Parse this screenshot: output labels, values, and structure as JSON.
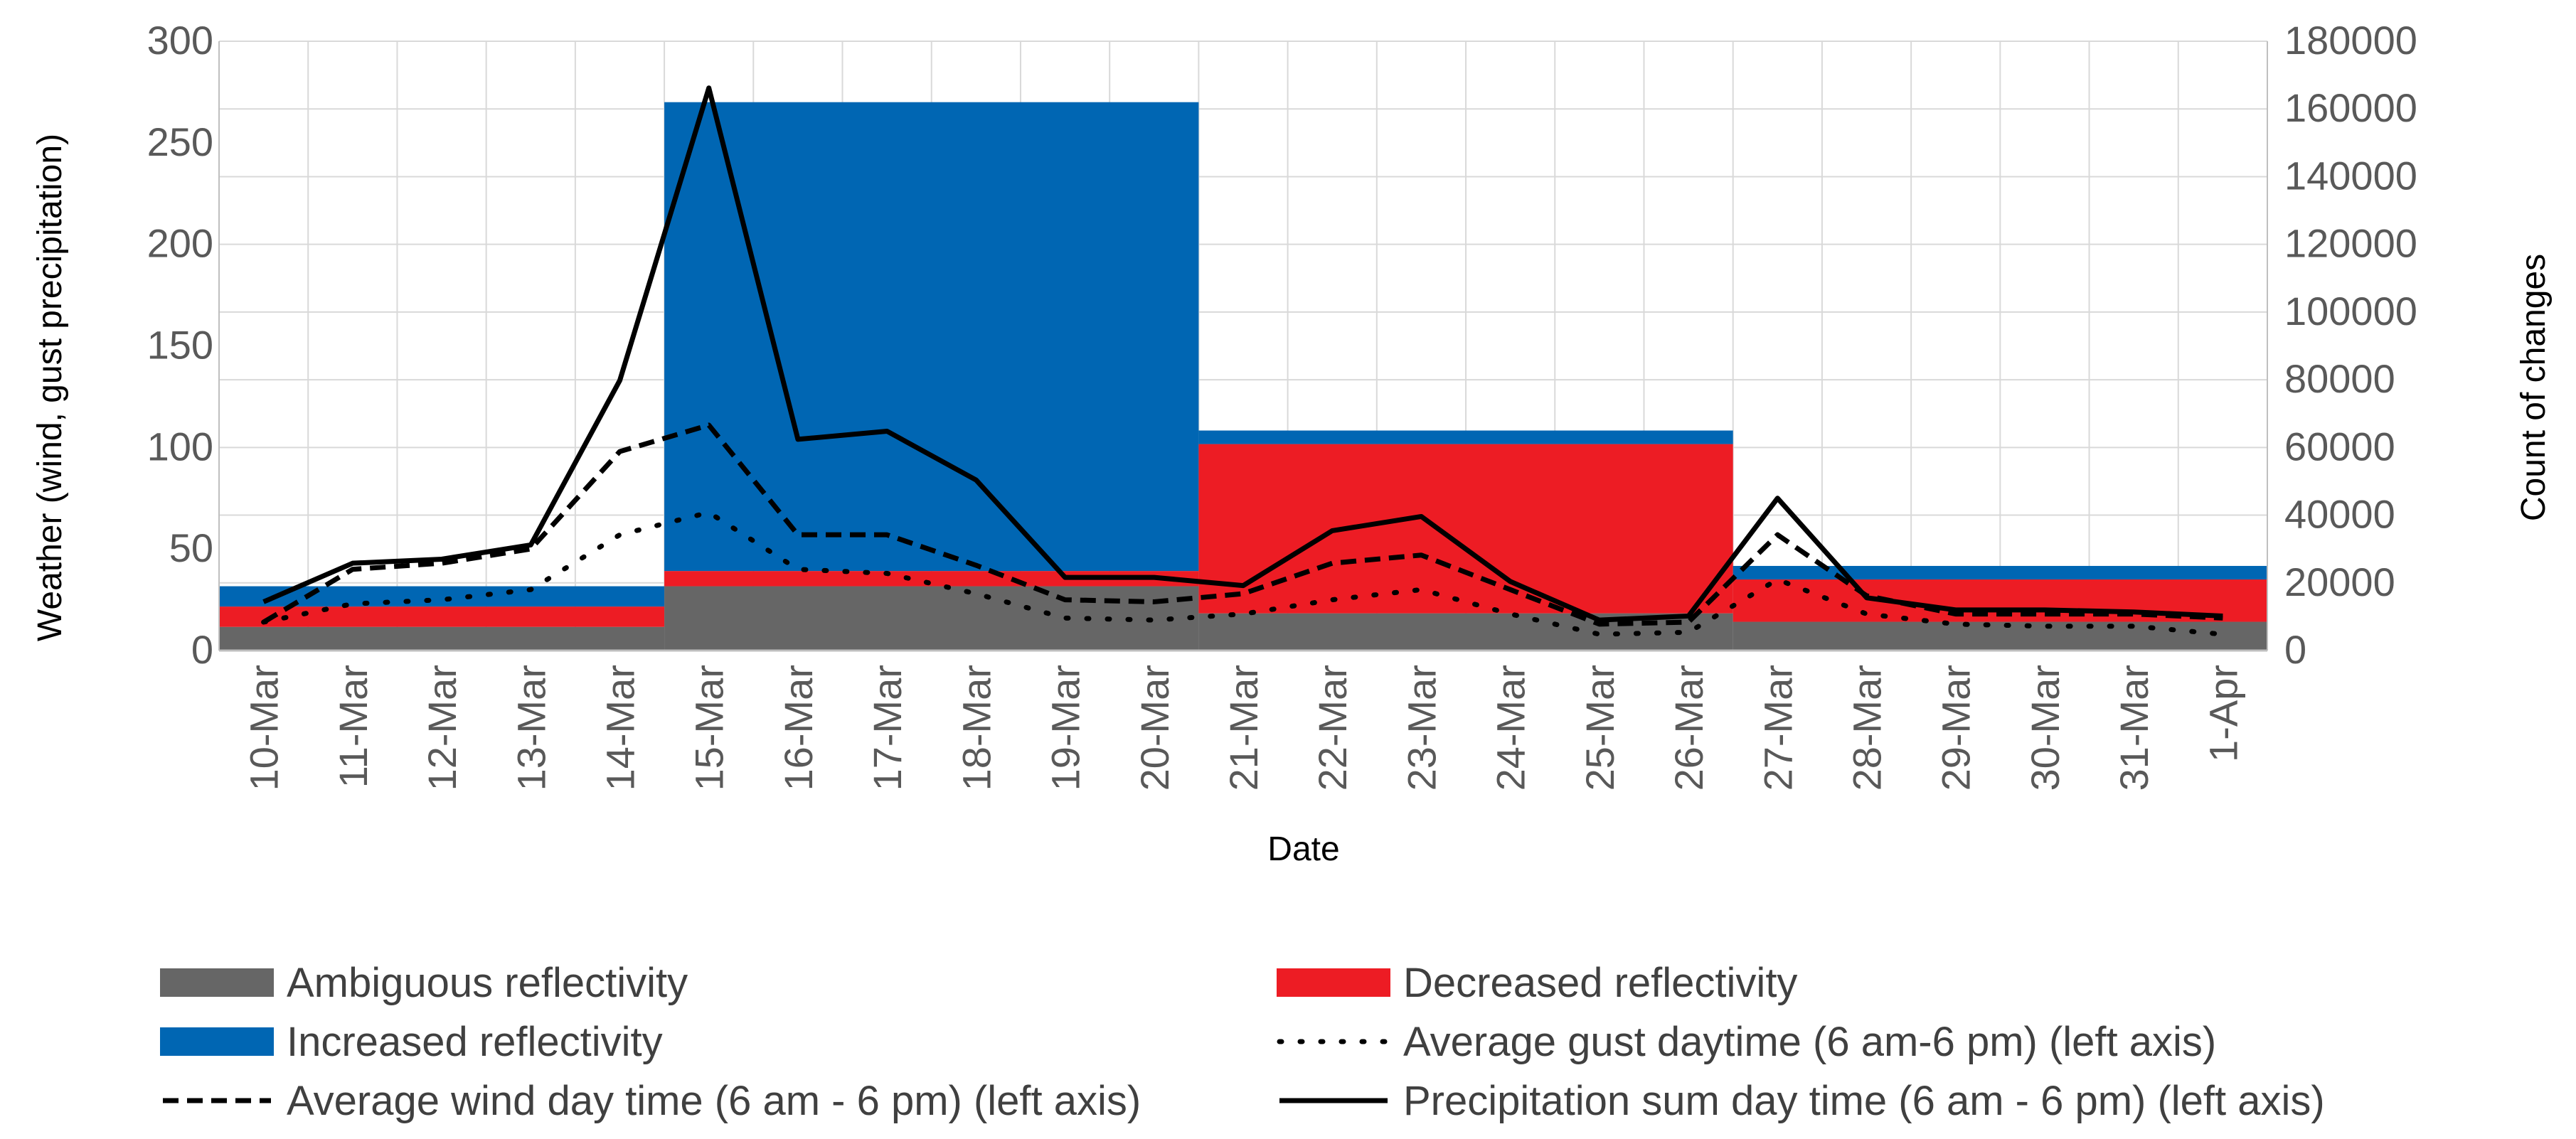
{
  "chart_data": {
    "type": "bar+line",
    "title": "",
    "xlabel": "Date",
    "ylabel_left": "Weather (wind, gust precipitation)",
    "ylabel_right": "Count of changes",
    "left_ylim": [
      0,
      300
    ],
    "left_yticks": [
      "0",
      "50",
      "100",
      "150",
      "200",
      "250",
      "300"
    ],
    "right_ylim": [
      0,
      180000
    ],
    "right_yticks": [
      "0",
      "20000",
      "40000",
      "60000",
      "80000",
      "100000",
      "120000",
      "140000",
      "160000",
      "180000"
    ],
    "categories": [
      "10-Mar",
      "11-Mar",
      "12-Mar",
      "13-Mar",
      "14-Mar",
      "15-Mar",
      "16-Mar",
      "17-Mar",
      "18-Mar",
      "19-Mar",
      "20-Mar",
      "21-Mar",
      "22-Mar",
      "23-Mar",
      "24-Mar",
      "25-Mar",
      "26-Mar",
      "27-Mar",
      "28-Mar",
      "29-Mar",
      "30-Mar",
      "31-Mar",
      "1-Apr"
    ],
    "grid": true,
    "legend_position": "bottom",
    "stacked_bars": {
      "axis": "right",
      "periods": [
        {
          "start": "10-Mar",
          "end": "14-Mar",
          "ambiguous": 7000,
          "decreased": 6000,
          "increased": 6000
        },
        {
          "start": "15-Mar",
          "end": "20-Mar",
          "ambiguous": 19000,
          "decreased": 4500,
          "increased": 138500
        },
        {
          "start": "21-Mar",
          "end": "26-Mar",
          "ambiguous": 11000,
          "decreased": 50000,
          "increased": 4000
        },
        {
          "start": "27-Mar",
          "end": "1-Apr",
          "ambiguous": 8500,
          "decreased": 12500,
          "increased": 4000
        }
      ]
    },
    "series": [
      {
        "name": "Ambiguous reflectivity",
        "kind": "bar",
        "color": "#666666"
      },
      {
        "name": "Decreased reflectivity",
        "kind": "bar",
        "color": "#ED1C24"
      },
      {
        "name": "Increased reflectivity",
        "kind": "bar",
        "color": "#0066B3"
      },
      {
        "name": "Average gust daytime (6 am-6 pm) (left axis)",
        "kind": "line",
        "style": "dotted",
        "color": "#000000",
        "axis": "left",
        "values": [
          14,
          23,
          25,
          30,
          57,
          68,
          40,
          38,
          28,
          16,
          15,
          18,
          25,
          30,
          18,
          8,
          9,
          35,
          18,
          13,
          12,
          12,
          8
        ]
      },
      {
        "name": "Average wind day time (6 am - 6 pm) (left axis)",
        "kind": "line",
        "style": "dashed",
        "color": "#000000",
        "axis": "left",
        "values": [
          14,
          40,
          43,
          50,
          98,
          111,
          57,
          57,
          42,
          25,
          24,
          28,
          43,
          47,
          30,
          13,
          14,
          57,
          27,
          18,
          18,
          18,
          16
        ]
      },
      {
        "name": "Precipitation sum day time (6 am - 6 pm) (left axis)",
        "kind": "line",
        "style": "solid",
        "color": "#000000",
        "axis": "left",
        "values": [
          24,
          43,
          45,
          52,
          133,
          277,
          104,
          108,
          84,
          36,
          36,
          32,
          59,
          66,
          34,
          15,
          17,
          75,
          26,
          20,
          20,
          19,
          17
        ]
      }
    ],
    "legend": [
      {
        "label": "Ambiguous reflectivity",
        "swatch": "bar",
        "color": "#666666"
      },
      {
        "label": "Decreased reflectivity",
        "swatch": "bar",
        "color": "#ED1C24"
      },
      {
        "label": "Increased reflectivity",
        "swatch": "bar",
        "color": "#0066B3"
      },
      {
        "label": "Average gust daytime (6 am-6 pm) (left axis)",
        "swatch": "dotted"
      },
      {
        "label": "Average wind day time (6 am - 6 pm) (left axis)",
        "swatch": "dashed"
      },
      {
        "label": "Precipitation sum day time (6 am - 6 pm) (left axis)",
        "swatch": "solid"
      }
    ]
  }
}
